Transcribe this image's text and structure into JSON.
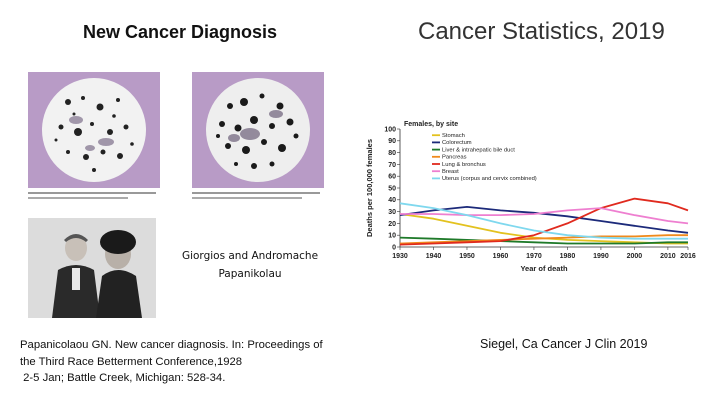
{
  "slide": {
    "left_title": "New Cancer Diagnosis",
    "right_title": "Cancer Statistics, 2019",
    "photo_caption_line1": "Giorgios and Andromache",
    "photo_caption_line2": "Papanikolau",
    "reference_left": [
      "Papanicolaou GN. New cancer diagnosis. In: Proceedings of",
      "the Third Race Betterment Conference,1928",
      " 2-5 Jan; Battle Creek, Michigan: 528-34."
    ],
    "reference_right": "Siegel, Ca Cancer J Clin 2019"
  },
  "chart_data": {
    "type": "line",
    "title": "Females, by site",
    "xlabel": "Year of death",
    "ylabel": "Deaths per 100,000 females",
    "xlim": [
      1930,
      2016
    ],
    "ylim": [
      0,
      100
    ],
    "xticks": [
      "1930",
      "1940",
      "1950",
      "1960",
      "1970",
      "1980",
      "1990",
      "2000",
      "2010",
      "2016"
    ],
    "yticks": [
      "0",
      "10",
      "20",
      "30",
      "40",
      "50",
      "60",
      "70",
      "80",
      "90",
      "100"
    ],
    "series": [
      {
        "name": "Stomach",
        "color": "#e3c21f",
        "x": [
          1930,
          1940,
          1950,
          1960,
          1970,
          1980,
          1990,
          2000,
          2010,
          2016
        ],
        "y": [
          28,
          24,
          18,
          12,
          8,
          6,
          5,
          4,
          3,
          3
        ]
      },
      {
        "name": "Colorectum",
        "color": "#1c2a7a",
        "x": [
          1930,
          1940,
          1950,
          1960,
          1970,
          1980,
          1990,
          2000,
          2010,
          2016
        ],
        "y": [
          27,
          31,
          34,
          31,
          29,
          26,
          22,
          18,
          14,
          12
        ]
      },
      {
        "name": "Liver & intrahepatic bile duct",
        "color": "#1f7a2a",
        "x": [
          1930,
          1940,
          1950,
          1960,
          1970,
          1980,
          1990,
          2000,
          2010,
          2016
        ],
        "y": [
          8,
          7,
          6,
          5,
          4,
          3,
          3,
          3,
          4,
          4
        ]
      },
      {
        "name": "Pancreas",
        "color": "#f08a1c",
        "x": [
          1930,
          1940,
          1950,
          1960,
          1970,
          1980,
          1990,
          2000,
          2010,
          2016
        ],
        "y": [
          3,
          4,
          5,
          6,
          7,
          8,
          9,
          9,
          10,
          10
        ]
      },
      {
        "name": "Lung & bronchus",
        "color": "#e02a1e",
        "x": [
          1930,
          1940,
          1950,
          1960,
          1970,
          1980,
          1990,
          2000,
          2010,
          2016
        ],
        "y": [
          2,
          3,
          4,
          5,
          10,
          20,
          33,
          41,
          37,
          31
        ]
      },
      {
        "name": "Breast",
        "color": "#ee7fd0",
        "x": [
          1930,
          1940,
          1950,
          1960,
          1970,
          1980,
          1990,
          2000,
          2010,
          2016
        ],
        "y": [
          28,
          28,
          27,
          27,
          28,
          31,
          33,
          27,
          22,
          20
        ]
      },
      {
        "name": "Uterus (corpus and cervix combined)",
        "color": "#7fd8ee",
        "x": [
          1930,
          1940,
          1950,
          1960,
          1970,
          1980,
          1990,
          2000,
          2010,
          2016
        ],
        "y": [
          37,
          33,
          27,
          20,
          14,
          10,
          8,
          7,
          7,
          7
        ]
      }
    ]
  }
}
